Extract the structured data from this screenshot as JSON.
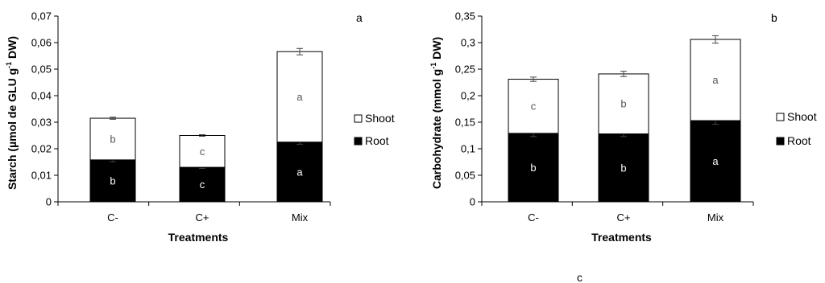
{
  "chart_data": [
    {
      "type": "bar",
      "stacked": true,
      "panel_label": "a",
      "ylabel": "Starch (µmol de GLU g-1 DW)",
      "xlabel": "Treatments",
      "categories": [
        "C-",
        "C+",
        "Mix"
      ],
      "ylim": [
        0,
        0.07
      ],
      "yticks": [
        "0",
        "0,01",
        "0,02",
        "0,03",
        "0,04",
        "0,05",
        "0,06",
        "0,07"
      ],
      "series": [
        {
          "name": "Root",
          "color": "#000000",
          "values": [
            0.0158,
            0.013,
            0.0225
          ],
          "errors": [
            0.0007,
            0.0004,
            0.0008
          ],
          "letters": [
            "b",
            "c",
            "a"
          ]
        },
        {
          "name": "Shoot",
          "color": "#ffffff",
          "values": [
            0.0157,
            0.012,
            0.0341
          ],
          "errors": [
            0.0004,
            0.0003,
            0.0012
          ],
          "letters": [
            "b",
            "c",
            "a"
          ]
        }
      ],
      "legend": [
        "Shoot",
        "Root"
      ],
      "legend_position": "right"
    },
    {
      "type": "bar",
      "stacked": true,
      "panel_label": "b",
      "ylabel": "Carbohydrate (mmol g-1 DW)",
      "xlabel": "Treatments",
      "categories": [
        "C-",
        "C+",
        "Mix"
      ],
      "ylim": [
        0,
        0.35
      ],
      "yticks": [
        "0",
        "0,05",
        "0,1",
        "0,15",
        "0,2",
        "0,25",
        "0,3",
        "0,35"
      ],
      "series": [
        {
          "name": "Root",
          "color": "#000000",
          "values": [
            0.129,
            0.128,
            0.153
          ],
          "errors": [
            0.006,
            0.005,
            0.007
          ],
          "letters": [
            "b",
            "b",
            "a"
          ]
        },
        {
          "name": "Shoot",
          "color": "#ffffff",
          "values": [
            0.102,
            0.113,
            0.153
          ],
          "errors": [
            0.004,
            0.005,
            0.007
          ],
          "letters": [
            "c",
            "b",
            "a"
          ]
        }
      ],
      "legend": [
        "Shoot",
        "Root"
      ],
      "legend_position": "right"
    }
  ],
  "footer_label": "c"
}
